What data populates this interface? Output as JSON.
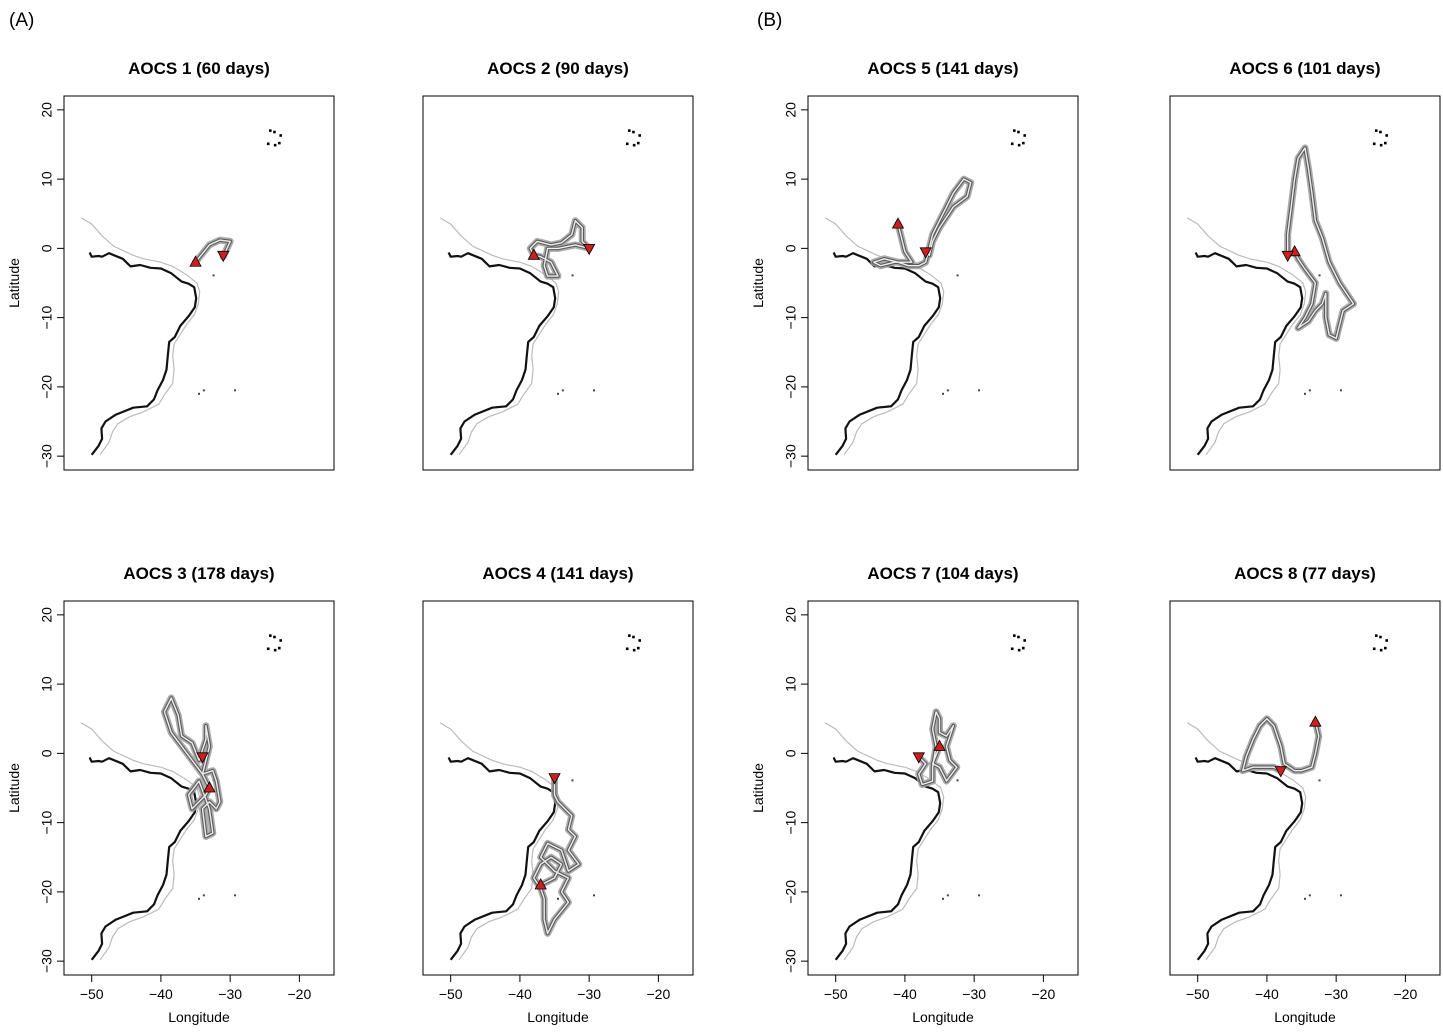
{
  "figure": {
    "panel_labels": [
      "(A)",
      "(B)"
    ],
    "x_axis_label": "Longitude",
    "y_axis_label": "Latitude",
    "x_ticks": [
      -50,
      -40,
      -30,
      -20
    ],
    "y_ticks": [
      20,
      10,
      0,
      -10,
      -20,
      -30
    ],
    "xlim": [
      -54,
      -15
    ],
    "ylim": [
      -32,
      22
    ]
  },
  "maps": [
    {
      "id": "aocs1",
      "title": "AOCS 1 (60 days)",
      "track": [
        [
          -35,
          -2
        ],
        [
          -33,
          0.5
        ],
        [
          -31.5,
          1.2
        ],
        [
          -30,
          1
        ],
        [
          -31,
          -1.2
        ],
        [
          -31,
          -1
        ]
      ],
      "start": [
        -35,
        -2
      ],
      "end": [
        -31,
        -1
      ]
    },
    {
      "id": "aocs2",
      "title": "AOCS 2 (90 days)",
      "track": [
        [
          -38,
          -1
        ],
        [
          -38.5,
          0
        ],
        [
          -37.5,
          1
        ],
        [
          -35.5,
          0.5
        ],
        [
          -34,
          0.8
        ],
        [
          -32.5,
          2
        ],
        [
          -32,
          4
        ],
        [
          -31,
          3
        ],
        [
          -31,
          1
        ],
        [
          -30,
          0
        ],
        [
          -32,
          0.5
        ],
        [
          -34.5,
          0
        ],
        [
          -36,
          0
        ],
        [
          -36.5,
          -2.5
        ],
        [
          -36,
          -4
        ],
        [
          -34.5,
          -4
        ],
        [
          -35.5,
          -2
        ],
        [
          -37,
          -1.2
        ],
        [
          -38,
          -1
        ]
      ],
      "start": [
        -38,
        -1
      ],
      "end": [
        -30,
        0
      ]
    },
    {
      "id": "aocs3",
      "title": "AOCS 3 (178 days)",
      "track": [
        [
          -33,
          -5
        ],
        [
          -34,
          -3
        ],
        [
          -35.5,
          -1
        ],
        [
          -37,
          1
        ],
        [
          -38.5,
          3
        ],
        [
          -39.5,
          6
        ],
        [
          -38.5,
          8
        ],
        [
          -37.5,
          5.5
        ],
        [
          -37,
          2.5
        ],
        [
          -35.5,
          1.5
        ],
        [
          -34.5,
          -1
        ],
        [
          -33.5,
          2
        ],
        [
          -33.5,
          4
        ],
        [
          -33,
          1
        ],
        [
          -34,
          -3
        ],
        [
          -32.5,
          -2.5
        ],
        [
          -32,
          -4
        ],
        [
          -31.5,
          -7
        ],
        [
          -32,
          -8
        ],
        [
          -33,
          -7
        ],
        [
          -34,
          -8
        ],
        [
          -33.5,
          -12
        ],
        [
          -32.5,
          -11.5
        ],
        [
          -33,
          -8
        ],
        [
          -34.5,
          -4
        ],
        [
          -36,
          -6
        ],
        [
          -35.5,
          -8
        ],
        [
          -33.5,
          -6
        ],
        [
          -33,
          -5
        ]
      ],
      "start": [
        -33,
        -5
      ],
      "end": [
        -34,
        -0.5
      ]
    },
    {
      "id": "aocs4",
      "title": "AOCS 4 (141 days)",
      "track": [
        [
          -35,
          -3.5
        ],
        [
          -35,
          -6
        ],
        [
          -34.5,
          -7
        ],
        [
          -32.5,
          -9
        ],
        [
          -33,
          -11
        ],
        [
          -32,
          -12
        ],
        [
          -33,
          -14
        ],
        [
          -31.5,
          -16
        ],
        [
          -33,
          -17
        ],
        [
          -34,
          -14
        ],
        [
          -36,
          -13
        ],
        [
          -37,
          -15
        ],
        [
          -35,
          -17
        ],
        [
          -33,
          -18
        ],
        [
          -34,
          -20
        ],
        [
          -33,
          -21.5
        ],
        [
          -35,
          -24
        ],
        [
          -36,
          -26
        ],
        [
          -36.5,
          -24
        ],
        [
          -36.5,
          -21
        ],
        [
          -37,
          -19.5
        ],
        [
          -38,
          -18
        ],
        [
          -37,
          -16
        ],
        [
          -35.5,
          -15
        ],
        [
          -34,
          -16
        ],
        [
          -35,
          -18
        ],
        [
          -37,
          -19
        ]
      ],
      "start": [
        -37,
        -19
      ],
      "end": [
        -35,
        -3.5
      ]
    },
    {
      "id": "aocs5",
      "title": "AOCS 5 (141 days)",
      "track": [
        [
          -41,
          3.5
        ],
        [
          -40.5,
          1.5
        ],
        [
          -40,
          -0.5
        ],
        [
          -39,
          -2
        ],
        [
          -41.5,
          -2
        ],
        [
          -43.5,
          -2.5
        ],
        [
          -44.5,
          -2
        ],
        [
          -43,
          -1.5
        ],
        [
          -41,
          -2
        ],
        [
          -39.5,
          -2.5
        ],
        [
          -38,
          -2.5
        ],
        [
          -37,
          -2
        ],
        [
          -36.5,
          0
        ],
        [
          -36,
          2
        ],
        [
          -35,
          4
        ],
        [
          -34,
          6
        ],
        [
          -33,
          8
        ],
        [
          -31.5,
          10
        ],
        [
          -30.5,
          9.5
        ],
        [
          -31,
          7.5
        ],
        [
          -33,
          6
        ],
        [
          -35,
          3
        ],
        [
          -36,
          1
        ],
        [
          -36.5,
          -1
        ],
        [
          -37,
          -0.5
        ]
      ],
      "start": [
        -41,
        3.5
      ],
      "end": [
        -37,
        -0.5
      ]
    },
    {
      "id": "aocs6",
      "title": "AOCS 6 (101 days)",
      "track": [
        [
          -36,
          -0.5
        ],
        [
          -35.5,
          -1.5
        ],
        [
          -34.5,
          -3
        ],
        [
          -33,
          -5
        ],
        [
          -33.5,
          -8
        ],
        [
          -34.5,
          -10
        ],
        [
          -35.5,
          -11.5
        ],
        [
          -34,
          -10.5
        ],
        [
          -33,
          -9
        ],
        [
          -32,
          -8
        ],
        [
          -31.5,
          -6.5
        ],
        [
          -31.5,
          -10
        ],
        [
          -31,
          -12.5
        ],
        [
          -30,
          -13
        ],
        [
          -29.5,
          -11
        ],
        [
          -29,
          -9
        ],
        [
          -27.5,
          -8
        ],
        [
          -29.5,
          -5
        ],
        [
          -31,
          -2
        ],
        [
          -32,
          1.5
        ],
        [
          -33,
          4
        ],
        [
          -33.5,
          8
        ],
        [
          -34,
          11.5
        ],
        [
          -34.5,
          14.5
        ],
        [
          -35.5,
          13
        ],
        [
          -36,
          10
        ],
        [
          -36.5,
          6
        ],
        [
          -37,
          2
        ],
        [
          -37,
          -0.5
        ]
      ],
      "start": [
        -36,
        -0.5
      ],
      "end": [
        -37,
        -1
      ]
    },
    {
      "id": "aocs7",
      "title": "AOCS 7 (104 days)",
      "track": [
        [
          -38,
          -0.5
        ],
        [
          -37,
          -1.5
        ],
        [
          -38,
          -3
        ],
        [
          -37.5,
          -4.5
        ],
        [
          -36,
          -4
        ],
        [
          -36,
          -2
        ],
        [
          -35.5,
          1
        ],
        [
          -36,
          3.5
        ],
        [
          -35.5,
          6
        ],
        [
          -35,
          5
        ],
        [
          -35,
          3
        ],
        [
          -34,
          2.5
        ],
        [
          -33,
          4
        ],
        [
          -34,
          1
        ],
        [
          -33.5,
          -1
        ],
        [
          -32.5,
          -2
        ],
        [
          -34,
          -4
        ],
        [
          -35,
          -2
        ],
        [
          -36,
          -1.5
        ],
        [
          -35,
          1
        ]
      ],
      "start": [
        -35,
        1
      ],
      "end": [
        -38,
        -0.5
      ]
    },
    {
      "id": "aocs8",
      "title": "AOCS 8 (77 days)",
      "track": [
        [
          -38,
          -2.5
        ],
        [
          -39,
          -2
        ],
        [
          -40,
          -2
        ],
        [
          -42,
          -2
        ],
        [
          -43.5,
          -2.5
        ],
        [
          -43,
          -0.5
        ],
        [
          -42,
          2
        ],
        [
          -41,
          4
        ],
        [
          -40,
          5
        ],
        [
          -39,
          4
        ],
        [
          -38,
          1
        ],
        [
          -37.5,
          -1.5
        ],
        [
          -36,
          -2.5
        ],
        [
          -35,
          -2.5
        ],
        [
          -33.5,
          -2
        ],
        [
          -33,
          0
        ],
        [
          -32.5,
          2.5
        ],
        [
          -33,
          4.5
        ]
      ],
      "start": [
        -33,
        4.5
      ],
      "end": [
        -38,
        -2.5
      ]
    }
  ],
  "colors": {
    "marker": "#cc1f1f",
    "coast": "#111111",
    "shelf": "#bbbbbb",
    "track_outer": "#9d9d9d",
    "track_inner": "#eeeeee"
  }
}
